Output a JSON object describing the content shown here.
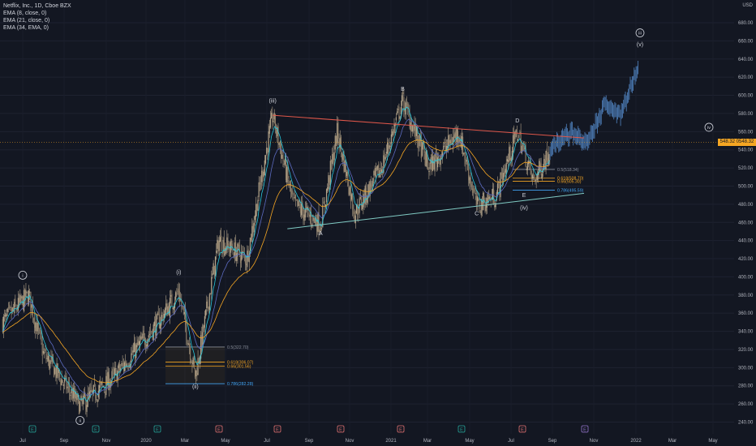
{
  "legend": {
    "symbol": "Netflix, Inc., 1D, Cboe BZX",
    "ema8": "EMA (8, close, 0)",
    "ema21": "EMA (21, close, 0)",
    "ema34": "EMA (34, EMA, 0)"
  },
  "currency": "USD",
  "last_price_label": "548.32 0548.32",
  "colors": {
    "background": "#131722",
    "candle": "#b4a48a",
    "projection": "#4a78b0",
    "ema8": "#26c6da",
    "ema21": "#5c6bc0",
    "ema34": "#f5a623",
    "resistance": "#e0574a",
    "support": "#80cbc4",
    "fib_gold": "#f5a623",
    "fib_blue": "#42a5f5",
    "text": "#d1d4dc"
  },
  "chart_data": {
    "type": "candlestick",
    "title": "Netflix, Inc., 1D, Cboe BZX",
    "x_ticks": [
      "Jul",
      "Sep",
      "Nov",
      "2020",
      "Mar",
      "May",
      "Jul",
      "Sep",
      "Nov",
      "2021",
      "Mar",
      "May",
      "Jul",
      "Sep",
      "Nov",
      "2022",
      "Mar",
      "May"
    ],
    "y_ticks": [
      240,
      260,
      280,
      300,
      320,
      340,
      360,
      380,
      400,
      420,
      440,
      460,
      480,
      500,
      520,
      540,
      560,
      580,
      600,
      620,
      640,
      660,
      680
    ],
    "ylim": [
      230,
      700
    ],
    "price_path": [
      {
        "date": "2019-06-01",
        "value": 350
      },
      {
        "date": "2019-07-10",
        "value": 380
      },
      {
        "date": "2019-08-01",
        "value": 315
      },
      {
        "date": "2019-09-25",
        "value": 258
      },
      {
        "date": "2019-11-15",
        "value": 290
      },
      {
        "date": "2020-01-20",
        "value": 350
      },
      {
        "date": "2020-02-20",
        "value": 384
      },
      {
        "date": "2020-03-16",
        "value": 290
      },
      {
        "date": "2020-04-20",
        "value": 440
      },
      {
        "date": "2020-06-01",
        "value": 420
      },
      {
        "date": "2020-07-10",
        "value": 578
      },
      {
        "date": "2020-08-10",
        "value": 480
      },
      {
        "date": "2020-09-20",
        "value": 458
      },
      {
        "date": "2020-10-15",
        "value": 560
      },
      {
        "date": "2020-11-10",
        "value": 470
      },
      {
        "date": "2020-12-20",
        "value": 520
      },
      {
        "date": "2021-01-21",
        "value": 594
      },
      {
        "date": "2021-03-01",
        "value": 520
      },
      {
        "date": "2021-04-15",
        "value": 560
      },
      {
        "date": "2021-05-12",
        "value": 478
      },
      {
        "date": "2021-06-10",
        "value": 490
      },
      {
        "date": "2021-07-12",
        "value": 560
      },
      {
        "date": "2021-08-05",
        "value": 505
      },
      {
        "date": "2021-08-30",
        "value": 540
      }
    ],
    "projection_path": [
      {
        "date": "2021-08-30",
        "value": 540
      },
      {
        "date": "2021-10-01",
        "value": 560
      },
      {
        "date": "2021-10-25",
        "value": 545
      },
      {
        "date": "2021-11-20",
        "value": 590
      },
      {
        "date": "2021-12-15",
        "value": 580
      },
      {
        "date": "2022-01-10",
        "value": 635
      }
    ],
    "trendlines": [
      {
        "name": "resistance",
        "from": {
          "date": "2020-07-10",
          "value": 578
        },
        "to": {
          "date": "2021-10-20",
          "value": 553
        }
      },
      {
        "name": "support",
        "from": {
          "date": "2020-08-01",
          "value": 453
        },
        "to": {
          "date": "2021-10-20",
          "value": 492
        }
      }
    ],
    "fib_levels": [
      {
        "group": "2020",
        "label": "0.5(322.70)",
        "value": 322.7
      },
      {
        "group": "2020",
        "label": "0.618(306.07)",
        "value": 306.07
      },
      {
        "group": "2020",
        "label": "0.66(301.56)",
        "value": 301.56
      },
      {
        "group": "2020",
        "label": "0.786(282.28)",
        "value": 282.28
      },
      {
        "group": "2021",
        "label": "0.5(518.34)",
        "value": 518.34
      },
      {
        "group": "2021",
        "label": "0.618(508.70)",
        "value": 508.7
      },
      {
        "group": "2021",
        "label": "0.66(505.30)",
        "value": 505.3
      },
      {
        "group": "2021",
        "label": "0.786(495.59)",
        "value": 495.59
      }
    ],
    "wave_labels": [
      {
        "text": "i",
        "circled": true,
        "date": "2019-07-01",
        "value": 400
      },
      {
        "text": "ii",
        "circled": true,
        "date": "2019-09-25",
        "value": 240
      },
      {
        "text": "(i)",
        "circled": false,
        "date": "2020-02-20",
        "value": 403
      },
      {
        "text": "(ii)",
        "circled": false,
        "date": "2020-03-16",
        "value": 277
      },
      {
        "text": "(iii)",
        "circled": false,
        "date": "2020-07-10",
        "value": 592
      },
      {
        "text": "A",
        "circled": false,
        "date": "2020-09-20",
        "value": 446
      },
      {
        "text": "B",
        "circled": false,
        "date": "2021-01-21",
        "value": 605
      },
      {
        "text": "C",
        "circled": false,
        "date": "2021-05-12",
        "value": 468
      },
      {
        "text": "D",
        "circled": false,
        "date": "2021-07-12",
        "value": 570
      },
      {
        "text": "E",
        "circled": false,
        "date": "2021-07-22",
        "value": 488
      },
      {
        "text": "(iv)",
        "circled": false,
        "date": "2021-07-22",
        "value": 474
      },
      {
        "text": "(v)",
        "circled": false,
        "date": "2022-01-10",
        "value": 654
      },
      {
        "text": "iii",
        "circled": true,
        "date": "2022-01-10",
        "value": 667
      },
      {
        "text": "iv",
        "circled": true,
        "date": "2022-04-20",
        "value": 563
      }
    ],
    "event_markers": [
      "E",
      "E",
      "E",
      "E",
      "E",
      "E",
      "E",
      "E",
      "E",
      "E"
    ]
  }
}
